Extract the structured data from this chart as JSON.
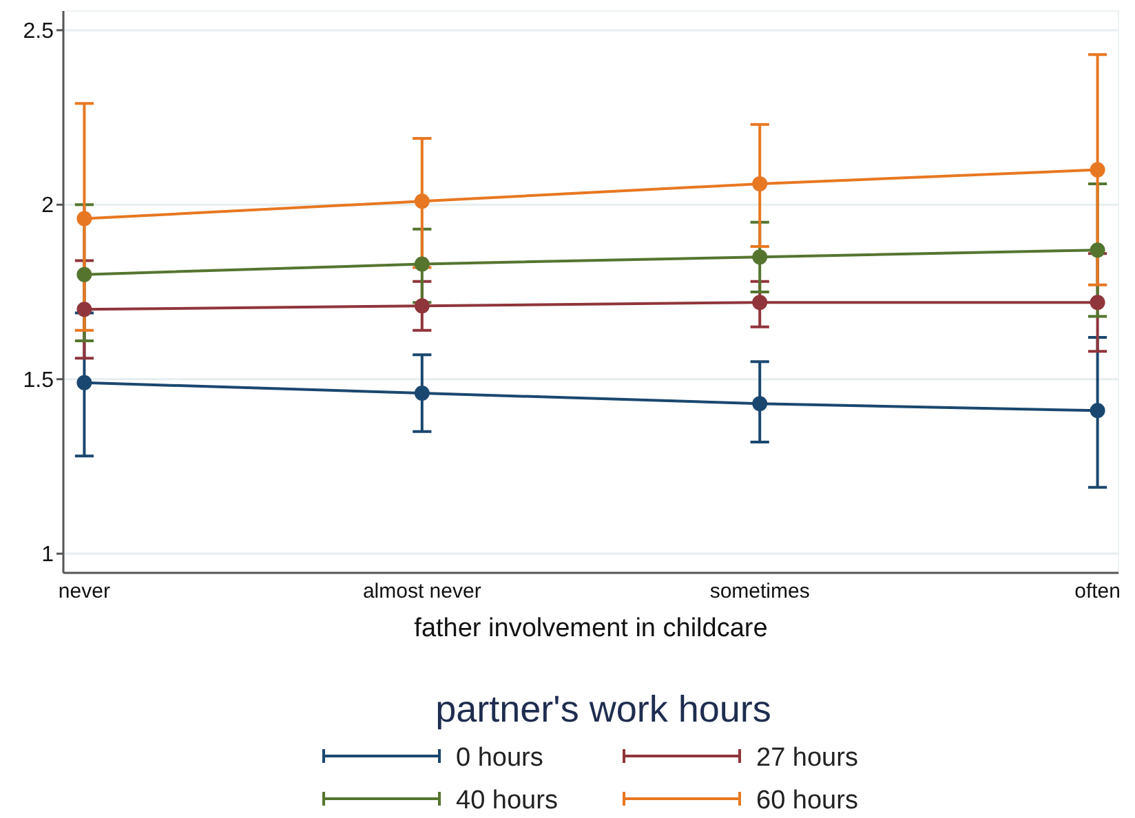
{
  "chart_data": {
    "type": "line",
    "xlabel": "father involvement in childcare",
    "legend_title": "partner's work hours",
    "categories": [
      "never",
      "almost never",
      "sometimes",
      "often"
    ],
    "series": [
      {
        "name": "0 hours",
        "color": "#1a476f",
        "values": [
          1.49,
          1.46,
          1.43,
          1.41
        ],
        "errors": [
          [
            1.28,
            1.69
          ],
          [
            1.35,
            1.57
          ],
          [
            1.32,
            1.55
          ],
          [
            1.19,
            1.62
          ]
        ]
      },
      {
        "name": "27 hours",
        "color": "#90353b",
        "values": [
          1.7,
          1.71,
          1.72,
          1.72
        ],
        "errors": [
          [
            1.56,
            1.84
          ],
          [
            1.64,
            1.78
          ],
          [
            1.65,
            1.78
          ],
          [
            1.58,
            1.86
          ]
        ]
      },
      {
        "name": "40 hours",
        "color": "#55752f",
        "values": [
          1.8,
          1.83,
          1.85,
          1.87
        ],
        "errors": [
          [
            1.61,
            2.0
          ],
          [
            1.72,
            1.93
          ],
          [
            1.75,
            1.95
          ],
          [
            1.68,
            2.06
          ]
        ]
      },
      {
        "name": "60 hours",
        "color": "#e87722",
        "values": [
          1.96,
          2.01,
          2.06,
          2.1
        ],
        "errors": [
          [
            1.64,
            2.29
          ],
          [
            1.82,
            2.19
          ],
          [
            1.88,
            2.23
          ],
          [
            1.77,
            2.43
          ]
        ]
      }
    ],
    "ylim": [
      0.945,
      2.555
    ],
    "yticks": [
      1,
      1.5,
      2,
      2.5
    ],
    "grid": "y",
    "legend": "bottom",
    "marker": "circle",
    "line_style": "solid"
  }
}
